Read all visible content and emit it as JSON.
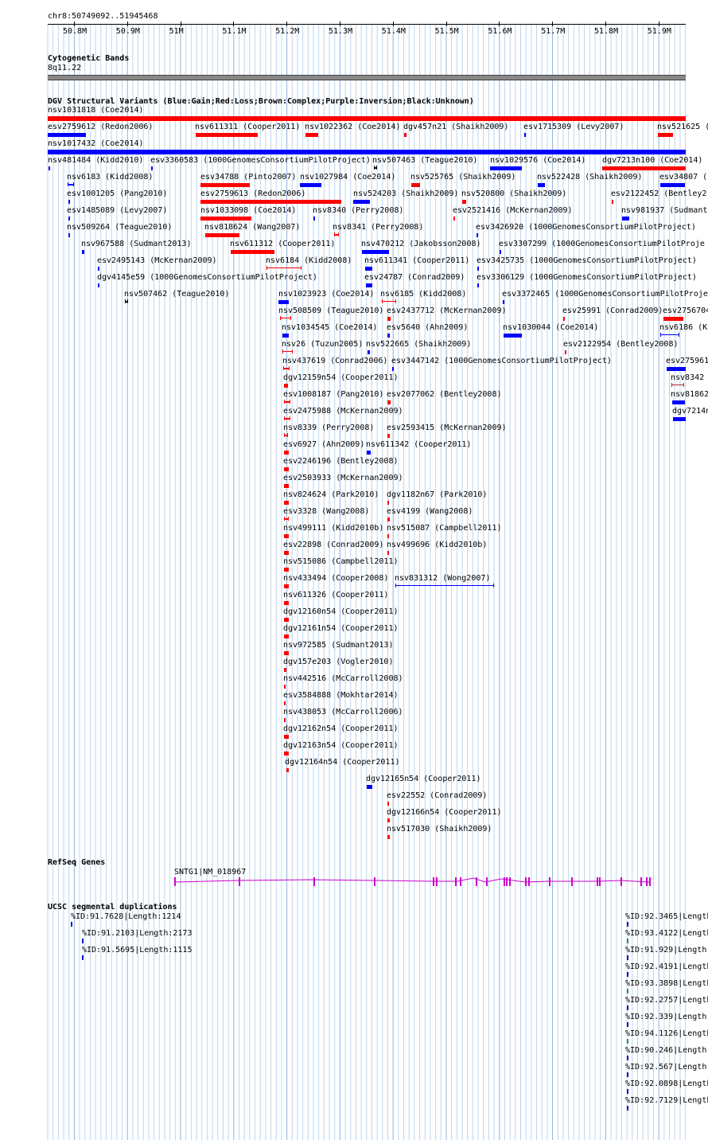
{
  "region": {
    "label": "chr8:50749092..51945468"
  },
  "ruler": {
    "ticks": [
      "50.8M",
      "50.9M",
      "51M",
      "51.1M",
      "51.2M",
      "51.3M",
      "51.4M",
      "51.5M",
      "51.6M",
      "51.7M",
      "51.8M",
      "51.9M"
    ]
  },
  "cytoband": {
    "title": "Cytogenetic Bands",
    "band": "8q11.22"
  },
  "colors": {
    "gain": "#0000ff",
    "loss": "#ff0000",
    "complex": "#a52a2a",
    "inversion": "#800080",
    "unknown": "#000000",
    "gene": "#cc00cc",
    "segdup_a": "#0000cc",
    "segdup_b": "#2e8b57"
  },
  "dgv": {
    "title": "DGV Structural Variants (Blue:Gain;Red:Loss;Brown:Complex;Purple:Inversion;Black:Unknown)",
    "features": [
      {
        "label": "nsv1031818 (Coe2014)",
        "c": "loss"
      },
      {
        "label": "esv2759612 (Redon2006)",
        "c": "gain"
      },
      {
        "label": "nsv611311 (Cooper2011)",
        "c": "loss"
      },
      {
        "label": "nsv1022362 (Coe2014)",
        "c": "loss"
      },
      {
        "label": "dgv457n21 (Shaikh2009)",
        "c": "loss"
      },
      {
        "label": "esv1715309 (Levy2007)",
        "c": "gain"
      },
      {
        "label": "nsv521625 (",
        "c": "loss"
      },
      {
        "label": "nsv1017432 (Coe2014)",
        "c": "gain"
      },
      {
        "label": "nsv481484 (Kidd2010)",
        "c": "gain"
      },
      {
        "label": "esv3360583 (1000GenomesConsortiumPilotProject)",
        "c": "gain"
      },
      {
        "label": "nsv507463 (Teague2010)",
        "c": "unknown"
      },
      {
        "label": "nsv1029576 (Coe2014)",
        "c": "gain"
      },
      {
        "label": "dgv7213n100 (Coe2014)",
        "c": "loss"
      },
      {
        "label": "nsv6183 (Kidd2008)",
        "c": "gain"
      },
      {
        "label": "esv34788 (Pinto2007)",
        "c": "loss"
      },
      {
        "label": "nsv1027984 (Coe2014)",
        "c": "gain"
      },
      {
        "label": "nsv525765 (Shaikh2009)",
        "c": "loss"
      },
      {
        "label": "nsv522428 (Shaikh2009)",
        "c": "gain"
      },
      {
        "label": "esv34807 (",
        "c": "gain"
      },
      {
        "label": "esv1001205 (Pang2010)",
        "c": "gain"
      },
      {
        "label": "esv2759613 (Redon2006)",
        "c": "loss"
      },
      {
        "label": "nsv524203 (Shaikh2009)",
        "c": "gain"
      },
      {
        "label": "nsv520800 (Shaikh2009)",
        "c": "loss"
      },
      {
        "label": "esv2122452 (Bentley2",
        "c": "loss"
      },
      {
        "label": "esv1485089 (Levy2007)",
        "c": "gain"
      },
      {
        "label": "nsv1033098 (Coe2014)",
        "c": "loss"
      },
      {
        "label": "nsv8340 (Perry2008)",
        "c": "gain"
      },
      {
        "label": "esv2521416 (McKernan2009)",
        "c": "loss"
      },
      {
        "label": "nsv981937 (Sudmant",
        "c": "gain"
      },
      {
        "label": "nsv509264 (Teague2010)",
        "c": "gain"
      },
      {
        "label": "nsv818624 (Wang2007)",
        "c": "loss"
      },
      {
        "label": "nsv8341 (Perry2008)",
        "c": "loss"
      },
      {
        "label": "esv3426920 (1000GenomesConsortiumPilotProject)",
        "c": "gain"
      },
      {
        "label": "nsv967588 (Sudmant2013)",
        "c": "gain"
      },
      {
        "label": "nsv611312 (Cooper2011)",
        "c": "loss"
      },
      {
        "label": "nsv470212 (Jakobsson2008)",
        "c": "gain"
      },
      {
        "label": "esv3307299 (1000GenomesConsortiumPilotProje",
        "c": "gain"
      },
      {
        "label": "esv2495143 (McKernan2009)",
        "c": "gain"
      },
      {
        "label": "nsv6184 (Kidd2008)",
        "c": "loss"
      },
      {
        "label": "nsv611341 (Cooper2011)",
        "c": "gain"
      },
      {
        "label": "esv3425735 (1000GenomesConsortiumPilotProject)",
        "c": "gain"
      },
      {
        "label": "dgv4145e59 (1000GenomesConsortiumPilotProject)",
        "c": "gain"
      },
      {
        "label": "esv24787 (Conrad2009)",
        "c": "gain"
      },
      {
        "label": "esv3306129 (1000GenomesConsortiumPilotProject)",
        "c": "gain"
      },
      {
        "label": "nsv507462 (Teague2010)",
        "c": "unknown"
      },
      {
        "label": "nsv1023923 (Coe2014)",
        "c": "gain"
      },
      {
        "label": "nsv6185 (Kidd2008)",
        "c": "loss"
      },
      {
        "label": "esv3372465 (1000GenomesConsortiumPilotProje",
        "c": "gain"
      },
      {
        "label": "nsv508509 (Teague2010)",
        "c": "loss"
      },
      {
        "label": "esv2437712 (McKernan2009)",
        "c": "loss"
      },
      {
        "label": "esv25991 (Conrad2009)",
        "c": "loss"
      },
      {
        "label": "esv2756704",
        "c": "loss"
      },
      {
        "label": "nsv1034545 (Coe2014)",
        "c": "gain"
      },
      {
        "label": "esv5640 (Ahn2009)",
        "c": "gain"
      },
      {
        "label": "nsv1030044 (Coe2014)",
        "c": "gain"
      },
      {
        "label": "nsv6186 (K",
        "c": "gain"
      },
      {
        "label": "nsv26 (Tuzun2005)",
        "c": "loss"
      },
      {
        "label": "nsv522665 (Shaikh2009)",
        "c": "gain"
      },
      {
        "label": "esv2122954 (Bentley2008)",
        "c": "loss"
      },
      {
        "label": "nsv437619 (Conrad2006)",
        "c": "loss"
      },
      {
        "label": "esv3447142 (1000GenomesConsortiumPilotProject)",
        "c": "gain"
      },
      {
        "label": "esv275961",
        "c": "gain"
      },
      {
        "label": "dgv12159n54 (Cooper2011)",
        "c": "loss"
      },
      {
        "label": "nsv8342",
        "c": "complex"
      },
      {
        "label": "esv1008187 (Pang2010)",
        "c": "loss"
      },
      {
        "label": "esv2077062 (Bentley2008)",
        "c": "loss"
      },
      {
        "label": "nsv81862",
        "c": "gain"
      },
      {
        "label": "esv2475988 (McKernan2009)",
        "c": "loss"
      },
      {
        "label": "dgv7214n",
        "c": "gain"
      },
      {
        "label": "nsv8339 (Perry2008)",
        "c": "loss"
      },
      {
        "label": "esv2593415 (McKernan2009)",
        "c": "loss"
      },
      {
        "label": "esv6927 (Ahn2009)",
        "c": "loss"
      },
      {
        "label": "nsv611342 (Cooper2011)",
        "c": "gain"
      },
      {
        "label": "esv2246196 (Bentley2008)",
        "c": "loss"
      },
      {
        "label": "esv2503933 (McKernan2009)",
        "c": "loss"
      },
      {
        "label": "nsv824624 (Park2010)",
        "c": "loss"
      },
      {
        "label": "dgv1182n67 (Park2010)",
        "c": "loss"
      },
      {
        "label": "esv3328 (Wang2008)",
        "c": "loss"
      },
      {
        "label": "esv4199 (Wang2008)",
        "c": "loss"
      },
      {
        "label": "nsv499111 (Kidd2010b)",
        "c": "loss"
      },
      {
        "label": "nsv515087 (Campbell2011)",
        "c": "loss"
      },
      {
        "label": "esv22898 (Conrad2009)",
        "c": "loss"
      },
      {
        "label": "nsv499696 (Kidd2010b)",
        "c": "loss"
      },
      {
        "label": "nsv515086 (Campbell2011)",
        "c": "loss"
      },
      {
        "label": "nsv433494 (Cooper2008)",
        "c": "loss"
      },
      {
        "label": "nsv831312 (Wong2007)",
        "c": "gain"
      },
      {
        "label": "nsv611326 (Cooper2011)",
        "c": "loss"
      },
      {
        "label": "dgv12160n54 (Cooper2011)",
        "c": "loss"
      },
      {
        "label": "dgv12161n54 (Cooper2011)",
        "c": "loss"
      },
      {
        "label": "nsv972585 (Sudmant2013)",
        "c": "loss"
      },
      {
        "label": "dgv157e203 (Vogler2010)",
        "c": "loss"
      },
      {
        "label": "nsv442516 (McCarroll2008)",
        "c": "loss"
      },
      {
        "label": "esv3584888 (Mokhtar2014)",
        "c": "loss"
      },
      {
        "label": "nsv438053 (McCarroll2006)",
        "c": "loss"
      },
      {
        "label": "dgv12162n54 (Cooper2011)",
        "c": "loss"
      },
      {
        "label": "dgv12163n54 (Cooper2011)",
        "c": "loss"
      },
      {
        "label": "dgv12164n54 (Cooper2011)",
        "c": "loss"
      },
      {
        "label": "dgv12165n54 (Cooper2011)",
        "c": "gain"
      },
      {
        "label": "esv22552 (Conrad2009)",
        "c": "loss"
      },
      {
        "label": "dgv12166n54 (Cooper2011)",
        "c": "loss"
      },
      {
        "label": "nsv517030 (Shaikh2009)",
        "c": "loss"
      }
    ]
  },
  "refseq": {
    "title": "RefSeq Genes",
    "gene_label": "SNTG1|NM_018967"
  },
  "segdup": {
    "title": "UCSC segmental duplications",
    "features": [
      {
        "label": "%ID:91.7628|Length:1214",
        "c": "segdup_a"
      },
      {
        "label": "%ID:91.2103|Length:2173",
        "c": "segdup_a"
      },
      {
        "label": "%ID:91.5695|Length:1115",
        "c": "segdup_a"
      },
      {
        "label": "%ID:92.3465|Length",
        "c": "segdup_a"
      },
      {
        "label": "%ID:93.4122|Length",
        "c": "segdup_b"
      },
      {
        "label": "%ID:91.929|Length",
        "c": "segdup_a"
      },
      {
        "label": "%ID:92.4191|Length",
        "c": "segdup_a"
      },
      {
        "label": "%ID:93.3898|Length",
        "c": "segdup_b"
      },
      {
        "label": "%ID:92.2757|Length",
        "c": "segdup_a"
      },
      {
        "label": "%ID:92.339|Length",
        "c": "segdup_a"
      },
      {
        "label": "%ID:94.1126|Length",
        "c": "segdup_b"
      },
      {
        "label": "%ID:90.246|Length",
        "c": "segdup_a"
      },
      {
        "label": "%ID:92.567|Length",
        "c": "segdup_a"
      },
      {
        "label": "%ID:92.0898|Length",
        "c": "segdup_a"
      },
      {
        "label": "%ID:92.7129|Length",
        "c": "segdup_a"
      }
    ]
  }
}
